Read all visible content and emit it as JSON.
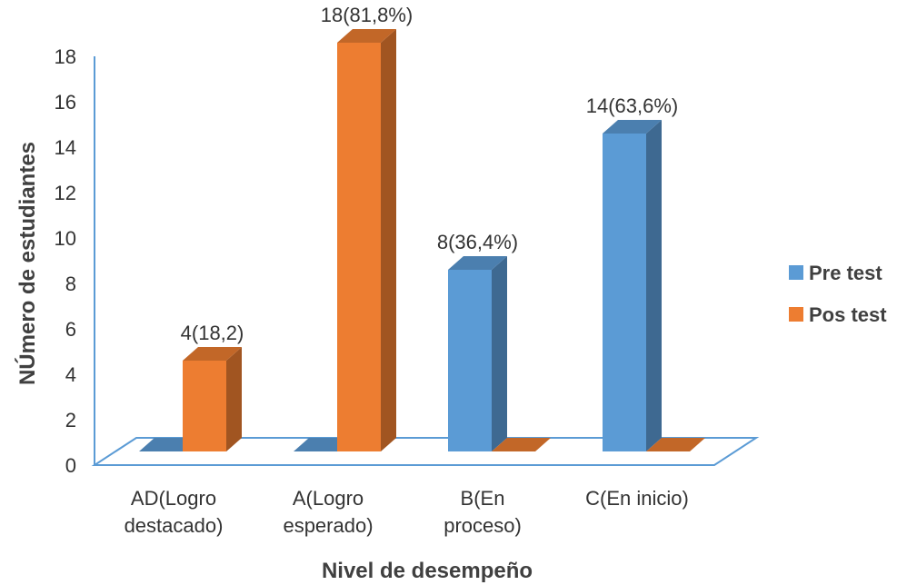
{
  "chart_data": {
    "type": "bar",
    "xlabel": "Nivel de desempeño",
    "ylabel": "NÚmero de estudiantes",
    "ylim": [
      0,
      18
    ],
    "yticks": [
      "0",
      "2",
      "4",
      "6",
      "8",
      "10",
      "12",
      "14",
      "16",
      "18"
    ],
    "categories": [
      [
        "AD(Logro",
        "destacado)"
      ],
      [
        "A(Logro",
        "esperado)"
      ],
      [
        "B(En",
        "proceso)"
      ],
      [
        "C(En inicio)"
      ]
    ],
    "series": [
      {
        "name": "Pre test",
        "color": "#5B9BD5",
        "values": [
          0,
          0,
          8,
          14
        ],
        "labels": [
          "",
          "",
          "8(36,4%)",
          "14(63,6%)"
        ]
      },
      {
        "name": "Pos test",
        "color": "#ED7D31",
        "values": [
          4,
          18,
          0,
          0
        ],
        "labels": [
          "4(18,2)",
          "18(81,8%)",
          "",
          ""
        ]
      }
    ],
    "legend_position": "right",
    "grid": false,
    "style": "3d-bar"
  }
}
